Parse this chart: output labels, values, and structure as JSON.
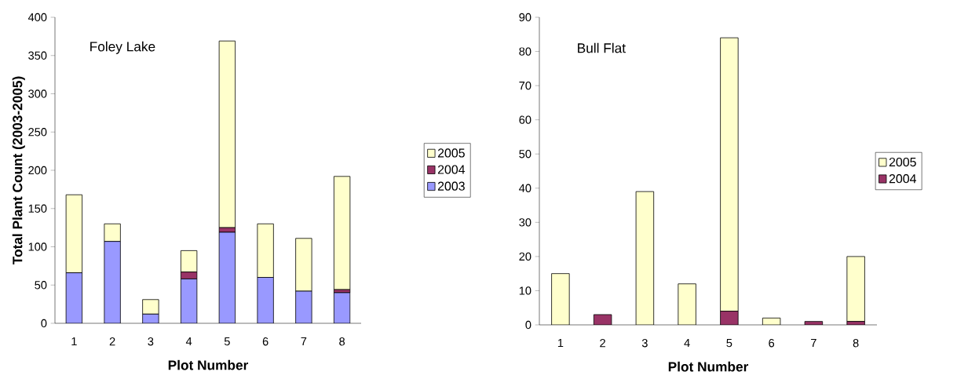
{
  "chart_data": [
    {
      "type": "bar",
      "stacked": true,
      "title": "Foley Lake",
      "xlabel": "Plot Number",
      "ylabel": "Total Plant Count (2003-2005)",
      "categories": [
        "1",
        "2",
        "3",
        "4",
        "5",
        "6",
        "7",
        "8"
      ],
      "series": [
        {
          "name": "2003",
          "color": "#9999ff",
          "values": [
            66,
            107,
            12,
            58,
            119,
            60,
            42,
            40
          ]
        },
        {
          "name": "2004",
          "color": "#993366",
          "values": [
            0,
            0,
            0,
            9,
            6,
            0,
            0,
            4
          ]
        },
        {
          "name": "2005",
          "color": "#ffffcc",
          "values": [
            102,
            23,
            19,
            28,
            244,
            70,
            69,
            148
          ]
        }
      ],
      "ylim": [
        0,
        400
      ],
      "yticks": [
        0,
        50,
        100,
        150,
        200,
        250,
        300,
        350,
        400
      ],
      "legend": "right",
      "grid": false
    },
    {
      "type": "bar",
      "stacked": true,
      "title": "Bull Flat",
      "xlabel": "Plot Number",
      "categories": [
        "1",
        "2",
        "3",
        "4",
        "5",
        "6",
        "7",
        "8"
      ],
      "series": [
        {
          "name": "2004",
          "color": "#993366",
          "values": [
            0,
            3,
            0,
            0,
            4,
            0,
            1,
            1
          ]
        },
        {
          "name": "2005",
          "color": "#ffffcc",
          "values": [
            15,
            0,
            39,
            12,
            80,
            2,
            0,
            19
          ]
        }
      ],
      "ylim": [
        0,
        90
      ],
      "yticks": [
        0,
        10,
        20,
        30,
        40,
        50,
        60,
        70,
        80,
        90
      ],
      "legend": "right",
      "grid": false
    }
  ]
}
